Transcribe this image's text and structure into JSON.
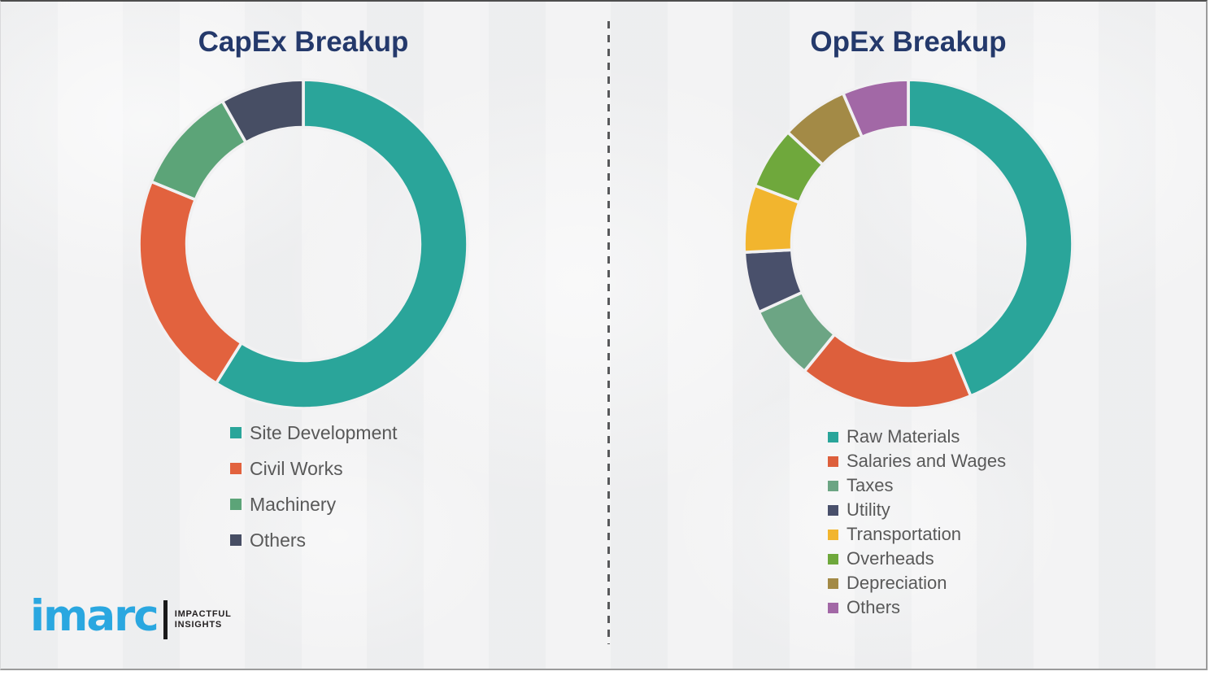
{
  "chart_data": [
    {
      "type": "pie",
      "donut": true,
      "title": "CapEx Breakup",
      "categories": [
        "Site Development",
        "Civil Works",
        "Machinery",
        "Others"
      ],
      "values": [
        58.9,
        22.3,
        10.6,
        8.2
      ],
      "values_note": "percent, estimated from arc angles (no data labels shown)",
      "colors": [
        "#2AA59A",
        "#E2623E",
        "#5CA478",
        "#474E64"
      ],
      "start_angle": "top",
      "direction": "clockwise",
      "legend_position": "below-left"
    },
    {
      "type": "pie",
      "donut": true,
      "title": "OpEx Breakup",
      "categories": [
        "Raw Materials",
        "Salaries and Wages",
        "Taxes",
        "Utility",
        "Transportation",
        "Overheads",
        "Depreciation",
        "Others"
      ],
      "values": [
        43.8,
        17.1,
        7.3,
        6.0,
        6.6,
        6.1,
        6.6,
        6.5
      ],
      "values_note": "percent, estimated from arc angles (no data labels shown)",
      "colors": [
        "#2AA59A",
        "#DD5F3C",
        "#6CA584",
        "#49506B",
        "#F2B52E",
        "#6FA83C",
        "#A38A46",
        "#A268A6"
      ],
      "start_angle": "top",
      "direction": "clockwise",
      "legend_position": "below-left"
    }
  ],
  "logo": {
    "brand": "imarc",
    "brand_color": "#2AA7E0",
    "tagline": [
      "IMPACTFUL",
      "INSIGHTS"
    ]
  }
}
